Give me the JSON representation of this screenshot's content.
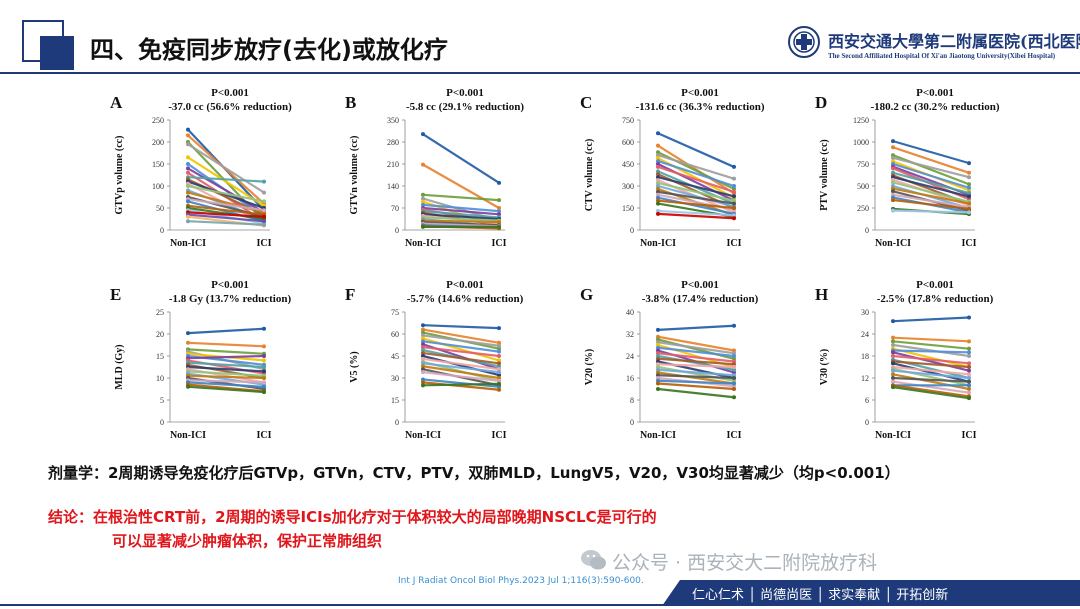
{
  "slide": {
    "title": "四、免疫同步放疗(去化)或放化疗",
    "hospital_name": "西安交通大學第二附属医院(西北医院)",
    "hospital_name_en": "The Second Affiliated Hospital Of Xi'an Jiaotong University(Xibei Hospital)",
    "summary": "剂量学：2周期诱导免疫化疗后GTVp，GTVn，CTV，PTV，双肺MLD，LungV5，V20，V30均显著减少（均p<0.001）",
    "conclusion_line1": "结论：在根治性CRT前，2周期的诱导ICIs加化疗对于体积较大的局部晚期NSCLC是可行的",
    "conclusion_line2": "可以显著减少肿瘤体积，保护正常肺组织",
    "watermark": "公众号 · 西安交大二附院放疗科",
    "citation": "Int J Radiat Oncol Biol Phys.2023 Jul 1;116(3):590-600.",
    "footer_motto": "仁心仁术 │ 尚德尚医 │ 求实奉献 │ 开拓创新",
    "colors": {
      "navy": "#1f3a7a",
      "red": "#e0161b",
      "citation_blue": "#3a8fd1"
    },
    "icons": [
      "logo-emblem",
      "wechat-icon"
    ]
  },
  "chart_data": [
    {
      "type": "line",
      "panel": "A",
      "p_text": "P<0.001",
      "change_text": "-37.0 cc (56.6% reduction)",
      "ylabel": "GTVp volume (cc)",
      "categories": [
        "Non-ICI",
        "ICI"
      ],
      "ylim": [
        0,
        250
      ],
      "yticks": [
        0,
        50,
        100,
        150,
        200,
        250
      ],
      "series": [
        {
          "values": [
            228,
            45
          ]
        },
        {
          "values": [
            215,
            60
          ]
        },
        {
          "values": [
            200,
            20
          ]
        },
        {
          "values": [
            195,
            85
          ]
        },
        {
          "values": [
            165,
            55
          ]
        },
        {
          "values": [
            150,
            30
          ]
        },
        {
          "values": [
            140,
            40
          ]
        },
        {
          "values": [
            130,
            20
          ]
        },
        {
          "values": [
            120,
            110
          ]
        },
        {
          "values": [
            115,
            35
          ]
        },
        {
          "values": [
            110,
            50
          ]
        },
        {
          "values": [
            105,
            15
          ]
        },
        {
          "values": [
            100,
            65
          ]
        },
        {
          "values": [
            90,
            25
          ]
        },
        {
          "values": [
            85,
            40
          ]
        },
        {
          "values": [
            75,
            30
          ]
        },
        {
          "values": [
            70,
            45
          ]
        },
        {
          "values": [
            65,
            20
          ]
        },
        {
          "values": [
            55,
            35
          ]
        },
        {
          "values": [
            50,
            25
          ]
        },
        {
          "values": [
            45,
            15
          ]
        },
        {
          "values": [
            40,
            30
          ]
        },
        {
          "values": [
            35,
            20
          ]
        },
        {
          "values": [
            30,
            10
          ]
        },
        {
          "values": [
            20,
            12
          ]
        }
      ]
    },
    {
      "type": "line",
      "panel": "B",
      "p_text": "P<0.001",
      "change_text": "-5.8 cc (29.1% reduction)",
      "ylabel": "GTVn volume (cc)",
      "categories": [
        "Non-ICI",
        "ICI"
      ],
      "ylim": [
        0,
        350
      ],
      "yticks": [
        0,
        70,
        140,
        210,
        280,
        350
      ],
      "series": [
        {
          "values": [
            305,
            150
          ]
        },
        {
          "values": [
            208,
            70
          ]
        },
        {
          "values": [
            112,
            95
          ]
        },
        {
          "values": [
            100,
            30
          ]
        },
        {
          "values": [
            90,
            10
          ]
        },
        {
          "values": [
            80,
            60
          ]
        },
        {
          "values": [
            70,
            50
          ]
        },
        {
          "values": [
            65,
            25
          ]
        },
        {
          "values": [
            60,
            40
          ]
        },
        {
          "values": [
            55,
            15
          ]
        },
        {
          "values": [
            50,
            35
          ]
        },
        {
          "values": [
            45,
            20
          ]
        },
        {
          "values": [
            40,
            30
          ]
        },
        {
          "values": [
            35,
            10
          ]
        },
        {
          "values": [
            30,
            25
          ]
        },
        {
          "values": [
            25,
            15
          ]
        },
        {
          "values": [
            20,
            12
          ]
        },
        {
          "values": [
            15,
            8
          ]
        },
        {
          "values": [
            12,
            5
          ]
        },
        {
          "values": [
            10,
            10
          ]
        }
      ]
    },
    {
      "type": "line",
      "panel": "C",
      "p_text": "P<0.001",
      "change_text": "-131.6 cc (36.3% reduction)",
      "ylabel": "CTV volume (cc)",
      "categories": [
        "Non-ICI",
        "ICI"
      ],
      "ylim": [
        0,
        750
      ],
      "yticks": [
        0,
        150,
        300,
        450,
        600,
        750
      ],
      "series": [
        {
          "values": [
            660,
            430
          ]
        },
        {
          "values": [
            575,
            250
          ]
        },
        {
          "values": [
            530,
            280
          ]
        },
        {
          "values": [
            510,
            350
          ]
        },
        {
          "values": [
            490,
            220
          ]
        },
        {
          "values": [
            470,
            300
          ]
        },
        {
          "values": [
            450,
            200
          ]
        },
        {
          "values": [
            430,
            260
          ]
        },
        {
          "values": [
            400,
            180
          ]
        },
        {
          "values": [
            380,
            150
          ]
        },
        {
          "values": [
            360,
            230
          ]
        },
        {
          "values": [
            340,
            120
          ]
        },
        {
          "values": [
            320,
            200
          ]
        },
        {
          "values": [
            300,
            160
          ]
        },
        {
          "values": [
            280,
            100
          ]
        },
        {
          "values": [
            260,
            180
          ]
        },
        {
          "values": [
            240,
            140
          ]
        },
        {
          "values": [
            220,
            110
          ]
        },
        {
          "values": [
            200,
            150
          ]
        },
        {
          "values": [
            180,
            90
          ]
        },
        {
          "values": [
            130,
            100
          ]
        },
        {
          "values": [
            110,
            80
          ]
        }
      ]
    },
    {
      "type": "line",
      "panel": "D",
      "p_text": "P<0.001",
      "change_text": "-180.2 cc (30.2% reduction)",
      "ylabel": "PTV volume (cc)",
      "categories": [
        "Non-ICI",
        "ICI"
      ],
      "ylim": [
        0,
        1250
      ],
      "yticks": [
        0,
        250,
        500,
        750,
        1000,
        1250
      ],
      "series": [
        {
          "values": [
            1010,
            760
          ]
        },
        {
          "values": [
            940,
            650
          ]
        },
        {
          "values": [
            850,
            520
          ]
        },
        {
          "values": [
            820,
            600
          ]
        },
        {
          "values": [
            780,
            450
          ]
        },
        {
          "values": [
            750,
            480
          ]
        },
        {
          "values": [
            720,
            400
          ]
        },
        {
          "values": [
            700,
            350
          ]
        },
        {
          "values": [
            650,
            420
          ]
        },
        {
          "values": [
            620,
            300
          ]
        },
        {
          "values": [
            600,
            380
          ]
        },
        {
          "values": [
            570,
            280
          ]
        },
        {
          "values": [
            540,
            320
          ]
        },
        {
          "values": [
            500,
            250
          ]
        },
        {
          "values": [
            470,
            300
          ]
        },
        {
          "values": [
            440,
            220
          ]
        },
        {
          "values": [
            400,
            260
          ]
        },
        {
          "values": [
            370,
            200
          ]
        },
        {
          "values": [
            340,
            240
          ]
        },
        {
          "values": [
            240,
            180
          ]
        },
        {
          "values": [
            220,
            200
          ]
        }
      ]
    },
    {
      "type": "line",
      "panel": "E",
      "p_text": "P<0.001",
      "change_text": "-1.8 Gy (13.7% reduction)",
      "ylabel": "MLD (Gy)",
      "categories": [
        "Non-ICI",
        "ICI"
      ],
      "ylim": [
        0,
        25
      ],
      "yticks": [
        0,
        5,
        10,
        15,
        20,
        25
      ],
      "series": [
        {
          "values": [
            20.2,
            21.2
          ]
        },
        {
          "values": [
            18.0,
            17.2
          ]
        },
        {
          "values": [
            16.5,
            15.5
          ]
        },
        {
          "values": [
            16.0,
            12.0
          ]
        },
        {
          "values": [
            15.5,
            14.0
          ]
        },
        {
          "values": [
            15.0,
            13.0
          ]
        },
        {
          "values": [
            14.5,
            15.0
          ]
        },
        {
          "values": [
            14.0,
            11.0
          ]
        },
        {
          "values": [
            13.5,
            12.5
          ]
        },
        {
          "values": [
            13.0,
            10.0
          ]
        },
        {
          "values": [
            12.5,
            11.5
          ]
        },
        {
          "values": [
            12.0,
            9.0
          ]
        },
        {
          "values": [
            11.5,
            10.5
          ]
        },
        {
          "values": [
            11.0,
            8.5
          ]
        },
        {
          "values": [
            10.5,
            10.0
          ]
        },
        {
          "values": [
            10.0,
            7.5
          ]
        },
        {
          "values": [
            9.5,
            9.0
          ]
        },
        {
          "values": [
            9.0,
            8.0
          ]
        },
        {
          "values": [
            8.5,
            7.0
          ]
        },
        {
          "values": [
            8.0,
            6.8
          ]
        }
      ]
    },
    {
      "type": "line",
      "panel": "F",
      "p_text": "P<0.001",
      "change_text": "-5.7% (14.6% reduction)",
      "ylabel": "V5 (%)",
      "categories": [
        "Non-ICI",
        "ICI"
      ],
      "ylim": [
        0,
        75
      ],
      "yticks": [
        0,
        15,
        30,
        45,
        60,
        75
      ],
      "series": [
        {
          "values": [
            66,
            64
          ]
        },
        {
          "values": [
            63,
            54
          ]
        },
        {
          "values": [
            61,
            50
          ]
        },
        {
          "values": [
            59,
            52
          ]
        },
        {
          "values": [
            57,
            42
          ]
        },
        {
          "values": [
            55,
            48
          ]
        },
        {
          "values": [
            53,
            36
          ]
        },
        {
          "values": [
            51,
            45
          ]
        },
        {
          "values": [
            49,
            38
          ]
        },
        {
          "values": [
            47,
            40
          ]
        },
        {
          "values": [
            45,
            32
          ]
        },
        {
          "values": [
            43,
            36
          ]
        },
        {
          "values": [
            41,
            28
          ]
        },
        {
          "values": [
            40,
            34
          ]
        },
        {
          "values": [
            38,
            30
          ]
        },
        {
          "values": [
            36,
            25
          ]
        },
        {
          "values": [
            34,
            28
          ]
        },
        {
          "values": [
            29,
            24
          ]
        },
        {
          "values": [
            27,
            22
          ]
        },
        {
          "values": [
            25,
            26
          ]
        }
      ]
    },
    {
      "type": "line",
      "panel": "G",
      "p_text": "P<0.001",
      "change_text": "-3.8% (17.4% reduction)",
      "ylabel": "V20 (%)",
      "categories": [
        "Non-ICI",
        "ICI"
      ],
      "ylim": [
        0,
        40
      ],
      "yticks": [
        0,
        8,
        16,
        24,
        32,
        40
      ],
      "series": [
        {
          "values": [
            33.5,
            35
          ]
        },
        {
          "values": [
            31,
            26
          ]
        },
        {
          "values": [
            30,
            23
          ]
        },
        {
          "values": [
            29,
            25
          ]
        },
        {
          "values": [
            28,
            20
          ]
        },
        {
          "values": [
            27,
            24
          ]
        },
        {
          "values": [
            26,
            18
          ]
        },
        {
          "values": [
            25,
            22
          ]
        },
        {
          "values": [
            24,
            19
          ]
        },
        {
          "values": [
            23,
            21
          ]
        },
        {
          "values": [
            22,
            16
          ]
        },
        {
          "values": [
            21,
            20
          ]
        },
        {
          "values": [
            20,
            15
          ]
        },
        {
          "values": [
            19,
            17
          ]
        },
        {
          "values": [
            18,
            14
          ]
        },
        {
          "values": [
            17,
            16
          ]
        },
        {
          "values": [
            16,
            13
          ]
        },
        {
          "values": [
            15,
            14
          ]
        },
        {
          "values": [
            14,
            12
          ]
        },
        {
          "values": [
            12,
            9
          ]
        }
      ]
    },
    {
      "type": "line",
      "panel": "H",
      "p_text": "P<0.001",
      "change_text": "-2.5% (17.8% reduction)",
      "ylabel": "V30 (%)",
      "categories": [
        "Non-ICI",
        "ICI"
      ],
      "ylim": [
        0,
        30
      ],
      "yticks": [
        0,
        6,
        12,
        18,
        24,
        30
      ],
      "series": [
        {
          "values": [
            27.5,
            28.5
          ]
        },
        {
          "values": [
            23,
            22
          ]
        },
        {
          "values": [
            22,
            20
          ]
        },
        {
          "values": [
            21,
            18
          ]
        },
        {
          "values": [
            20,
            15
          ]
        },
        {
          "values": [
            19.5,
            19
          ]
        },
        {
          "values": [
            19,
            14
          ]
        },
        {
          "values": [
            18,
            16
          ]
        },
        {
          "values": [
            17,
            12
          ]
        },
        {
          "values": [
            16.5,
            15
          ]
        },
        {
          "values": [
            16,
            11
          ]
        },
        {
          "values": [
            15,
            13
          ]
        },
        {
          "values": [
            14.5,
            10
          ]
        },
        {
          "values": [
            14,
            12
          ]
        },
        {
          "values": [
            13,
            9
          ]
        },
        {
          "values": [
            12,
            11
          ]
        },
        {
          "values": [
            11,
            8
          ]
        },
        {
          "values": [
            10,
            10
          ]
        },
        {
          "values": [
            10,
            7
          ]
        },
        {
          "values": [
            9.5,
            6.5
          ]
        }
      ]
    }
  ]
}
